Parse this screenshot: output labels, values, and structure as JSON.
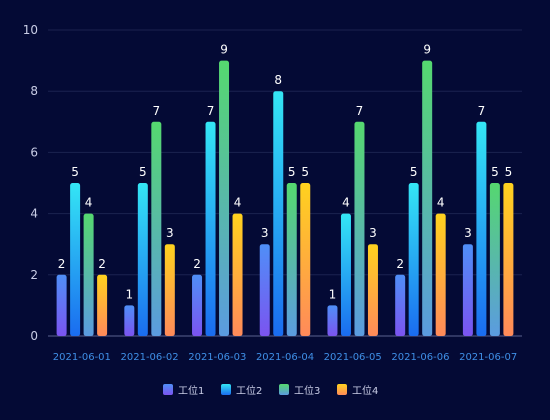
{
  "chart_data": {
    "type": "bar",
    "title": "",
    "xlabel": "",
    "ylabel": "",
    "ylim": [
      0,
      10
    ],
    "yticks": [
      0,
      2,
      4,
      6,
      8,
      10
    ],
    "grid": true,
    "legend_position": "bottom-center",
    "categories": [
      "2021-06-01",
      "2021-06-02",
      "2021-06-03",
      "2021-06-04",
      "2021-06-05",
      "2021-06-06",
      "2021-06-07"
    ],
    "series": [
      {
        "name": "工位1",
        "values": [
          2,
          1,
          2,
          3,
          1,
          2,
          3
        ],
        "colors": [
          "#4f8ff7",
          "#7b54f0"
        ]
      },
      {
        "name": "工位2",
        "values": [
          5,
          5,
          7,
          8,
          4,
          5,
          7
        ],
        "colors": [
          "#34e6f5",
          "#1a6cf0"
        ]
      },
      {
        "name": "工位3",
        "values": [
          4,
          7,
          9,
          5,
          7,
          9,
          5
        ],
        "colors": [
          "#55d86f",
          "#5b9be0"
        ]
      },
      {
        "name": "工位4",
        "values": [
          2,
          3,
          4,
          5,
          3,
          4,
          5
        ],
        "colors": [
          "#ffd21e",
          "#ff8a5a"
        ]
      }
    ]
  }
}
